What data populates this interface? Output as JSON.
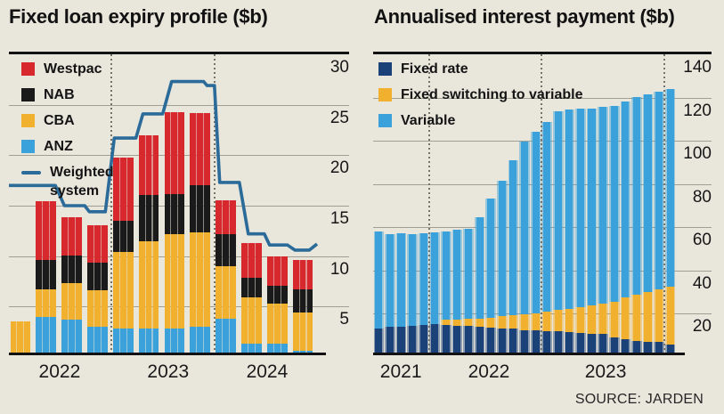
{
  "page": {
    "background": "#e9e6dc",
    "source_label": "SOURCE: JARDEN"
  },
  "chart_data": [
    {
      "type": "bar",
      "title": "Fixed loan expiry profile ($b)",
      "stacked": true,
      "bars_per_group": 3,
      "categories": [
        "2022-Q1",
        "2022-Q2",
        "2022-Q3",
        "2022-Q4",
        "2023-Q1",
        "2023-Q2",
        "2023-Q3",
        "2023-Q4",
        "2024-Q1",
        "2024-Q2",
        "2024-Q3",
        "2024-Q4"
      ],
      "x_year_labels": [
        "2022",
        "2023",
        "2024"
      ],
      "year_separator_after_group": [
        4,
        8
      ],
      "ylim": [
        0,
        30
      ],
      "yticks": [
        5,
        10,
        15,
        20,
        25,
        30
      ],
      "grid": true,
      "legend_position": "top-left",
      "series": [
        {
          "name": "Westpac",
          "color": "#d7282e",
          "values": [
            0,
            5.9,
            3.8,
            3.7,
            6.3,
            6.0,
            8.2,
            7.2,
            3.4,
            3.4,
            2.9,
            2.9
          ]
        },
        {
          "name": "NAB",
          "color": "#1a1a1a",
          "values": [
            0,
            2.9,
            2.8,
            2.8,
            3.2,
            4.6,
            4.0,
            4.7,
            3.2,
            2.0,
            1.8,
            2.3
          ]
        },
        {
          "name": "CBA",
          "color": "#f1b12f",
          "values": [
            3.3,
            2.8,
            3.6,
            3.6,
            7.6,
            8.7,
            9.4,
            9.4,
            5.2,
            4.6,
            4.0,
            3.8
          ]
        },
        {
          "name": "ANZ",
          "color": "#3ba1da",
          "values": [
            0,
            3.7,
            3.5,
            2.8,
            2.6,
            2.6,
            2.6,
            2.8,
            3.6,
            1.1,
            1.1,
            0.4
          ]
        }
      ],
      "stack_bottom_up": [
        3,
        2,
        1,
        0
      ],
      "line_series": {
        "name": "Weighted system",
        "label_lines": [
          "Weighted",
          "system"
        ],
        "color": "#2b6b99",
        "points": [
          [
            0,
            17
          ],
          [
            0.151,
            17
          ],
          [
            0.18,
            15
          ],
          [
            0.246,
            15
          ],
          [
            0.261,
            14.4
          ],
          [
            0.313,
            14.4
          ],
          [
            0.342,
            21.7
          ],
          [
            0.412,
            21.7
          ],
          [
            0.435,
            24.1
          ],
          [
            0.499,
            24.1
          ],
          [
            0.528,
            27.3
          ],
          [
            0.632,
            27.3
          ],
          [
            0.643,
            26.9
          ],
          [
            0.667,
            26.9
          ],
          [
            0.684,
            17.3
          ],
          [
            0.748,
            17.3
          ],
          [
            0.777,
            12.2
          ],
          [
            0.829,
            12.2
          ],
          [
            0.846,
            11.1
          ],
          [
            0.904,
            11.1
          ],
          [
            0.928,
            10.6
          ],
          [
            0.975,
            10.6
          ],
          [
            1,
            11.2
          ]
        ]
      }
    },
    {
      "type": "bar",
      "title": "Annualised interest payment ($b)",
      "stacked": true,
      "bars_per_group": 1,
      "bar_count": 27,
      "x_year_labels": [
        "2021",
        "2022",
        "2023"
      ],
      "year_separator_after_bar": [
        5,
        15,
        26
      ],
      "ylim": [
        0,
        140
      ],
      "yticks": [
        20,
        40,
        60,
        80,
        100,
        120,
        140
      ],
      "grid": true,
      "legend_position": "top-left",
      "series": [
        {
          "name": "Fixed rate",
          "color": "#1b4179",
          "values": [
            12.1,
            12.9,
            12.9,
            13.3,
            13.6,
            14.0,
            13.8,
            13.5,
            13.3,
            12.9,
            12.5,
            12.2,
            11.9,
            11.4,
            11.2,
            10.9,
            10.6,
            10.3,
            10.0,
            9.7,
            9.4,
            7.9,
            7.1,
            6.3,
            5.9,
            5.7,
            4.6
          ]
        },
        {
          "name": "Fixed switching to variable",
          "color": "#f1b12f",
          "values": [
            0,
            0,
            0,
            0,
            0,
            0,
            2.3,
            2.9,
            3.3,
            3.9,
            4.7,
            5.5,
            6.2,
            7.3,
            8.1,
            9.1,
            10.1,
            11.1,
            12.1,
            13.2,
            14.3,
            16.7,
            19.4,
            21.7,
            23.3,
            24.7,
            26.9
          ]
        },
        {
          "name": "Variable",
          "color": "#3ba1da",
          "values": [
            45.4,
            43.3,
            43.7,
            42.9,
            42.8,
            42.8,
            41.3,
            41.6,
            41.8,
            47.0,
            55.7,
            63.5,
            72.6,
            80.7,
            84.7,
            88.5,
            92.8,
            92.9,
            92.6,
            91.9,
            91.8,
            91.4,
            91.3,
            91.9,
            92.1,
            92.1,
            92.3
          ]
        }
      ],
      "stack_bottom_up": [
        0,
        1,
        2
      ]
    }
  ]
}
